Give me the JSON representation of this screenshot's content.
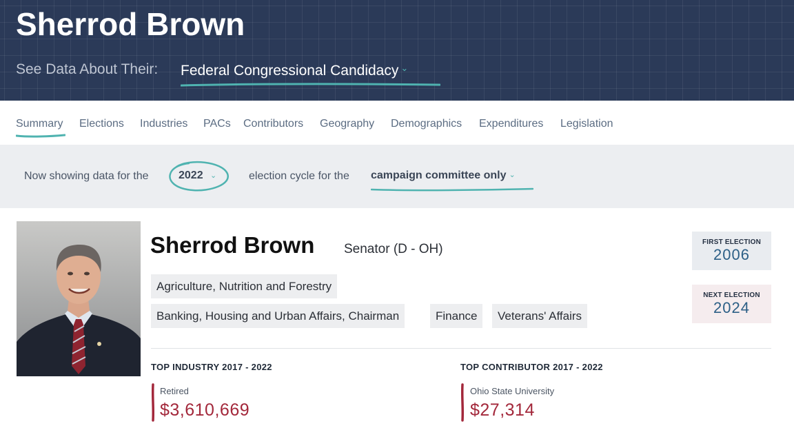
{
  "header": {
    "name": "Sherrod Brown",
    "see_data_label": "See Data About Their:",
    "data_selector_value": "Federal Congressional Candidacy",
    "chevron_icon": "chevron-down-icon"
  },
  "tabs": [
    {
      "label": "Summary",
      "active": true
    },
    {
      "label": "Elections"
    },
    {
      "label": "Industries"
    },
    {
      "label": "PACs"
    },
    {
      "label": "Contributors"
    },
    {
      "label": "Geography"
    },
    {
      "label": "Demographics"
    },
    {
      "label": "Expenditures"
    },
    {
      "label": "Legislation"
    }
  ],
  "cycle_bar": {
    "prefix": "Now showing data for the",
    "year": "2022",
    "middle": "election cycle for the",
    "committee": "campaign committee only"
  },
  "profile": {
    "name": "Sherrod Brown",
    "role": "Senator (D - OH)",
    "committees": [
      "Agriculture, Nutrition and Forestry",
      "Banking, Housing and Urban Affairs, Chairman",
      "Finance",
      "Veterans' Affairs"
    ],
    "first_election_label": "FIRST ELECTION",
    "first_election_year": "2006",
    "next_election_label": "NEXT ELECTION",
    "next_election_year": "2024"
  },
  "top_industry": {
    "heading": "TOP INDUSTRY 2017 - 2022",
    "name": "Retired",
    "amount": "$3,610,669"
  },
  "top_contributor": {
    "heading": "TOP CONTRIBUTOR 2017 - 2022",
    "name": "Ohio State University",
    "amount": "$27,314"
  },
  "colors": {
    "header_bg": "#2b3a58",
    "accent_teal": "#4fb3b0",
    "money_red": "#a3283b",
    "election_blue": "#2c5f86"
  }
}
